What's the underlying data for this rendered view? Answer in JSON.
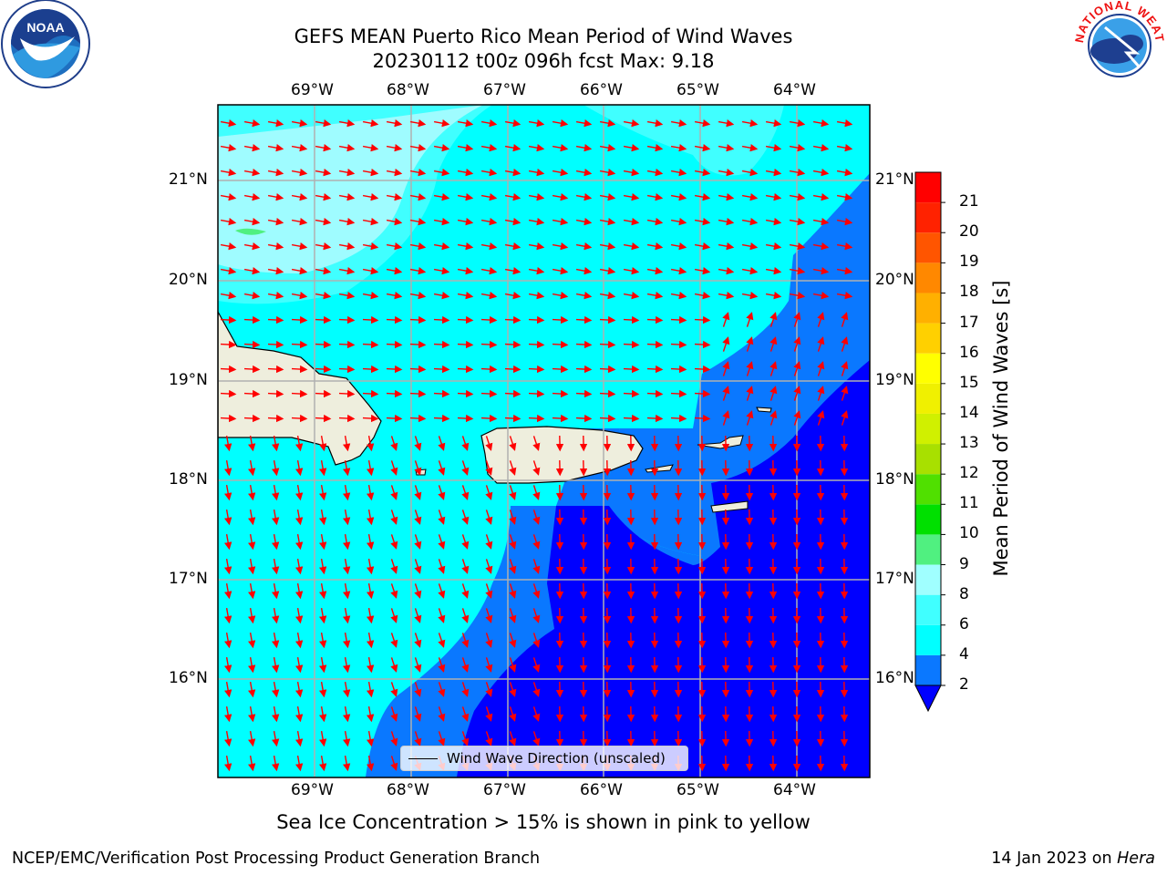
{
  "title_line1": "GEFS MEAN Puerto Rico Mean Period of Wind Waves",
  "title_line2": "20230112 t00z 096h fcst   Max: 9.18",
  "lon_labels": [
    "69°W",
    "68°W",
    "67°W",
    "66°W",
    "65°W",
    "64°W"
  ],
  "lat_labels": [
    "21°N",
    "20°N",
    "19°N",
    "18°N",
    "17°N",
    "16°N"
  ],
  "colorbar": {
    "title": "Mean Period of Wind Waves [s]",
    "ticks": [
      "2",
      "4",
      "6",
      "8",
      "9",
      "10",
      "11",
      "12",
      "13",
      "14",
      "15",
      "16",
      "17",
      "18",
      "19",
      "20",
      "21"
    ],
    "colors": [
      "#0a78ff",
      "#00ffff",
      "#40ffff",
      "#a0ffff",
      "#50f080",
      "#00e000",
      "#50e000",
      "#a8e000",
      "#d0f000",
      "#f0f000",
      "#ffff00",
      "#ffd000",
      "#ffb000",
      "#ff8800",
      "#ff5500",
      "#ff2200",
      "#ff0000"
    ],
    "under_color": "#0000ff"
  },
  "legend": {
    "label": "Wind Wave Direction (unscaled)"
  },
  "subtitle": "Sea Ice Concentration > 15% is shown in pink to yellow",
  "footer_left": "NCEP/EMC/Verification Post Processing Product Generation Branch",
  "footer_date": "14 Jan 2023 on ",
  "footer_host": "Hera",
  "logos": {
    "noaa": "NOAA",
    "nws": "NATIONAL WEATHER SERVICE"
  },
  "colors": {
    "land": "#eeeedd",
    "arrow": "#ff0000",
    "grid": "#b0b0b0"
  }
}
